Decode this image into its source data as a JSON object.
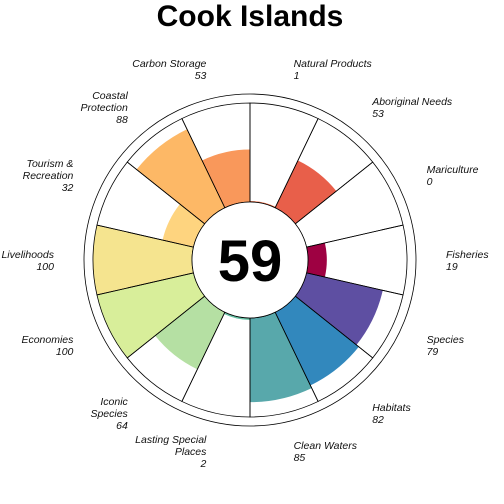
{
  "chart_data": {
    "type": "pie",
    "title": "Cook Islands",
    "overall_score": "59",
    "max_value": 100,
    "goals": [
      {
        "name": "Fisheries",
        "label_lines": [
          "Fisheries"
        ],
        "value": 19,
        "color": "#9e0142"
      },
      {
        "name": "Mariculture",
        "label_lines": [
          "Mariculture"
        ],
        "value": 0,
        "color": "#d53e4f"
      },
      {
        "name": "Aboriginal Needs",
        "label_lines": [
          "Aboriginal Needs"
        ],
        "value": 53,
        "color": "#e85f4a"
      },
      {
        "name": "Natural Products",
        "label_lines": [
          "Natural Products"
        ],
        "value": 1,
        "color": "#f46d43"
      },
      {
        "name": "Carbon Storage",
        "label_lines": [
          "Carbon Storage"
        ],
        "value": 53,
        "color": "#f9985b"
      },
      {
        "name": "Coastal Protection",
        "label_lines": [
          "Coastal",
          "Protection"
        ],
        "value": 88,
        "color": "#fdb866"
      },
      {
        "name": "Tourism & Recreation",
        "label_lines": [
          "Tourism &",
          "Recreation"
        ],
        "value": 32,
        "color": "#fed47f"
      },
      {
        "name": "Livelihoods",
        "label_lines": [
          "Livelihoods"
        ],
        "value": 100,
        "color": "#f5e48f"
      },
      {
        "name": "Economies",
        "label_lines": [
          "Economies"
        ],
        "value": 100,
        "color": "#d8ee9a"
      },
      {
        "name": "Iconic Species",
        "label_lines": [
          "Iconic",
          "Species"
        ],
        "value": 64,
        "color": "#b5e0a3"
      },
      {
        "name": "Lasting Special Places",
        "label_lines": [
          "Lasting Special",
          "Places"
        ],
        "value": 2,
        "color": "#66c2a5"
      },
      {
        "name": "Clean Waters",
        "label_lines": [
          "Clean Waters"
        ],
        "value": 85,
        "color": "#58a8ab"
      },
      {
        "name": "Habitats",
        "label_lines": [
          "Habitats"
        ],
        "value": 82,
        "color": "#3288bd"
      },
      {
        "name": "Species",
        "label_lines": [
          "Species"
        ],
        "value": 79,
        "color": "#5e4fa2"
      }
    ]
  }
}
